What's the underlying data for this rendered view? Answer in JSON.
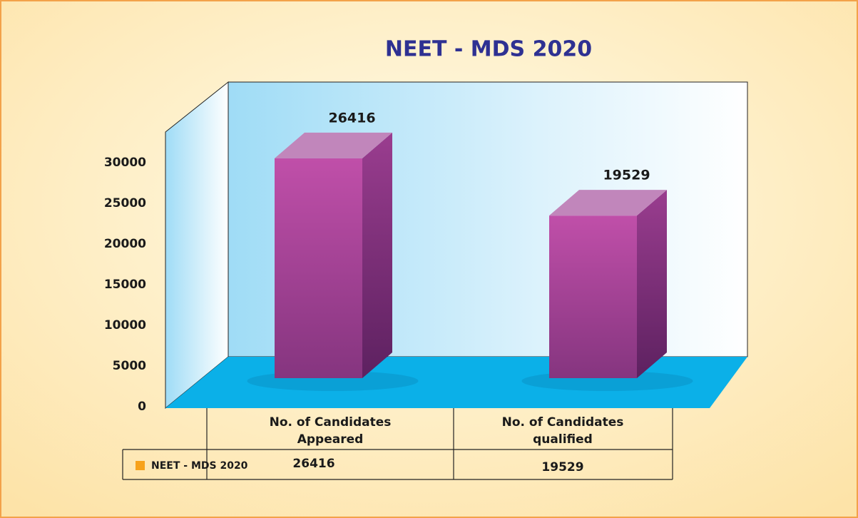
{
  "chart_data": {
    "type": "bar3d",
    "title": "NEET - MDS 2020",
    "categories": [
      "No. of Candidates Appeared",
      "No. of Candidates qualified"
    ],
    "series": [
      {
        "name": "NEET - MDS 2020",
        "color": "#a13f95",
        "values": [
          26416,
          19529
        ]
      }
    ],
    "legend_color": "#f7a21b",
    "ylim": [
      0,
      30000
    ],
    "yticks": [
      0,
      5000,
      10000,
      15000,
      20000,
      25000,
      30000
    ]
  }
}
